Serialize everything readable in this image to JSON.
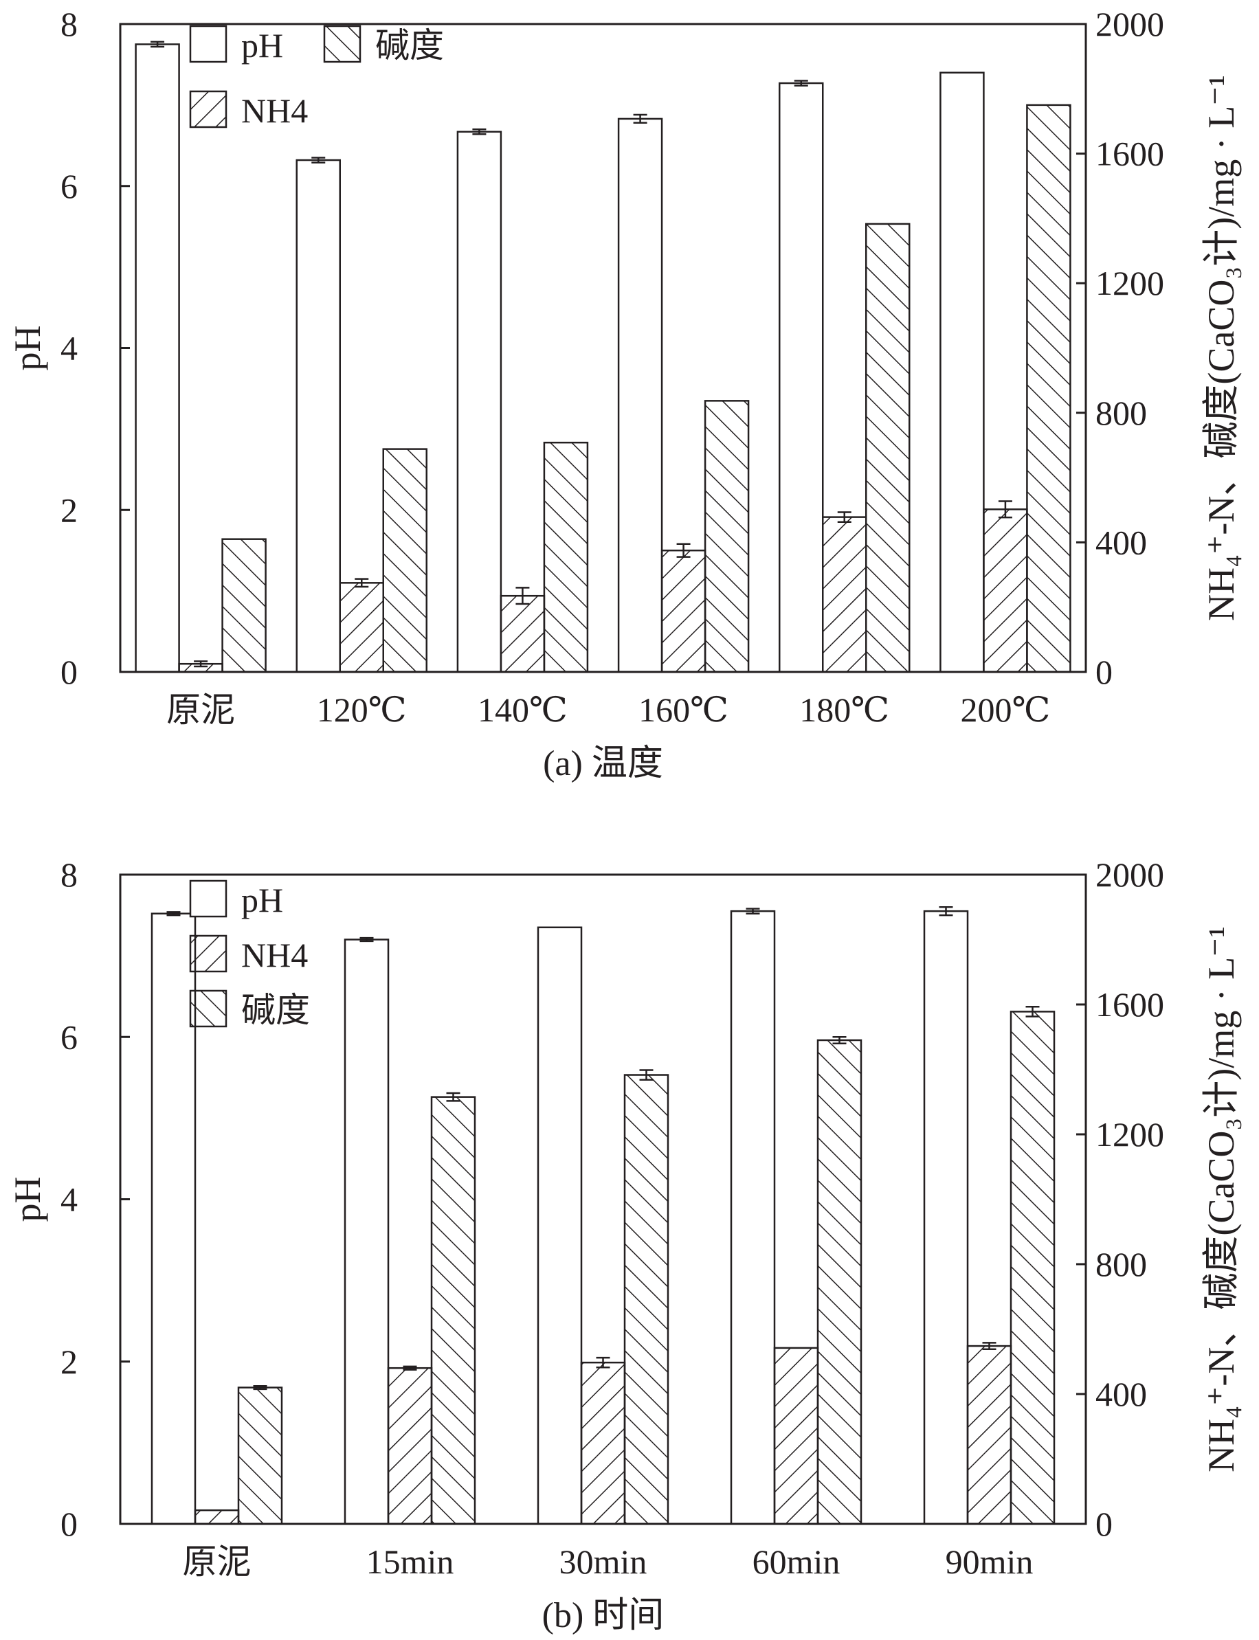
{
  "charts": [
    {
      "type": "bar",
      "caption": "(a) 温度",
      "categories": [
        "原泥",
        "120℃",
        "140℃",
        "160℃",
        "180℃",
        "200℃"
      ],
      "series": [
        {
          "name": "pH",
          "axis": "left",
          "pattern": "none",
          "values": [
            7.75,
            6.32,
            6.67,
            6.83,
            7.27,
            7.4
          ],
          "errors": [
            0.03,
            0.03,
            0.03,
            0.05,
            0.03,
            null
          ]
        },
        {
          "name": "NH4",
          "axis": "right",
          "pattern": "forward",
          "values": [
            25,
            275,
            235,
            375,
            478,
            502
          ],
          "errors": [
            8,
            12,
            25,
            20,
            15,
            25
          ]
        },
        {
          "name": "碱度",
          "axis": "right",
          "pattern": "back",
          "values": [
            410,
            688,
            708,
            837,
            1383,
            1750
          ],
          "errors": [
            null,
            null,
            null,
            null,
            null,
            null
          ]
        }
      ],
      "ylabel_left": "pH",
      "ylim_left": [
        0,
        8
      ],
      "yticks_left": [
        "0",
        "2",
        "4",
        "6",
        "8"
      ],
      "ylim_right": [
        0,
        2000
      ],
      "yticks_right": [
        "0",
        "400",
        "800",
        "1200",
        "1600",
        "2000"
      ],
      "ylabel_right": "NH₄⁺-N、碱度(CaCO₃计)/mg · L⁻¹",
      "legend": {
        "placement": "top-left",
        "layout": "grid",
        "items": [
          "pH",
          "碱度",
          "NH4"
        ]
      }
    },
    {
      "type": "bar",
      "caption": "(b) 时间",
      "categories": [
        "原泥",
        "15min",
        "30min",
        "60min",
        "90min"
      ],
      "series": [
        {
          "name": "pH",
          "axis": "left",
          "pattern": "none",
          "values": [
            7.52,
            7.2,
            7.35,
            7.55,
            7.55
          ],
          "errors": [
            0.02,
            0.02,
            null,
            0.03,
            0.05
          ]
        },
        {
          "name": "NH4",
          "axis": "right",
          "pattern": "forward",
          "values": [
            42,
            480,
            497,
            542,
            548
          ],
          "errors": [
            null,
            5,
            15,
            null,
            10
          ]
        },
        {
          "name": "碱度",
          "axis": "right",
          "pattern": "back",
          "values": [
            420,
            1315,
            1383,
            1490,
            1578
          ],
          "errors": [
            5,
            12,
            15,
            10,
            15
          ]
        }
      ],
      "ylabel_left": "pH",
      "ylim_left": [
        0,
        8
      ],
      "yticks_left": [
        "0",
        "2",
        "4",
        "6",
        "8"
      ],
      "ylim_right": [
        0,
        2000
      ],
      "yticks_right": [
        "0",
        "400",
        "800",
        "1200",
        "1600",
        "2000"
      ],
      "ylabel_right": "NH₄⁺-N、碱度(CaCO₃计)/mg · L⁻¹",
      "legend": {
        "placement": "top-left",
        "layout": "column",
        "items": [
          "pH",
          "NH4",
          "碱度"
        ]
      }
    }
  ],
  "colors": {
    "ink": "#231f20",
    "bar_fill": "#ffffff"
  },
  "chart_data": [
    {
      "type": "bar",
      "title": "(a) 温度",
      "categories": [
        "原泥",
        "120℃",
        "140℃",
        "160℃",
        "180℃",
        "200℃"
      ],
      "series": [
        {
          "name": "pH",
          "axis": "left",
          "values": [
            7.75,
            6.32,
            6.67,
            6.83,
            7.27,
            7.4
          ]
        },
        {
          "name": "NH4",
          "axis": "right",
          "values": [
            25,
            275,
            235,
            375,
            478,
            502
          ]
        },
        {
          "name": "碱度",
          "axis": "right",
          "values": [
            410,
            688,
            708,
            837,
            1383,
            1750
          ]
        }
      ],
      "ylabel": "pH",
      "ylim": [
        0,
        8
      ],
      "y2label": "NH₄⁺-N、碱度(CaCO₃计)/mg · L⁻¹",
      "y2lim": [
        0,
        2000
      ],
      "grid": false,
      "legend": "top-left"
    },
    {
      "type": "bar",
      "title": "(b) 时间",
      "categories": [
        "原泥",
        "15min",
        "30min",
        "60min",
        "90min"
      ],
      "series": [
        {
          "name": "pH",
          "axis": "left",
          "values": [
            7.52,
            7.2,
            7.35,
            7.55,
            7.55
          ]
        },
        {
          "name": "NH4",
          "axis": "right",
          "values": [
            42,
            480,
            497,
            542,
            548
          ]
        },
        {
          "name": "碱度",
          "axis": "right",
          "values": [
            420,
            1315,
            1383,
            1490,
            1578
          ]
        }
      ],
      "ylabel": "pH",
      "ylim": [
        0,
        8
      ],
      "y2label": "NH₄⁺-N、碱度(CaCO₃计)/mg · L⁻¹",
      "y2lim": [
        0,
        2000
      ],
      "grid": false,
      "legend": "top-left"
    }
  ]
}
